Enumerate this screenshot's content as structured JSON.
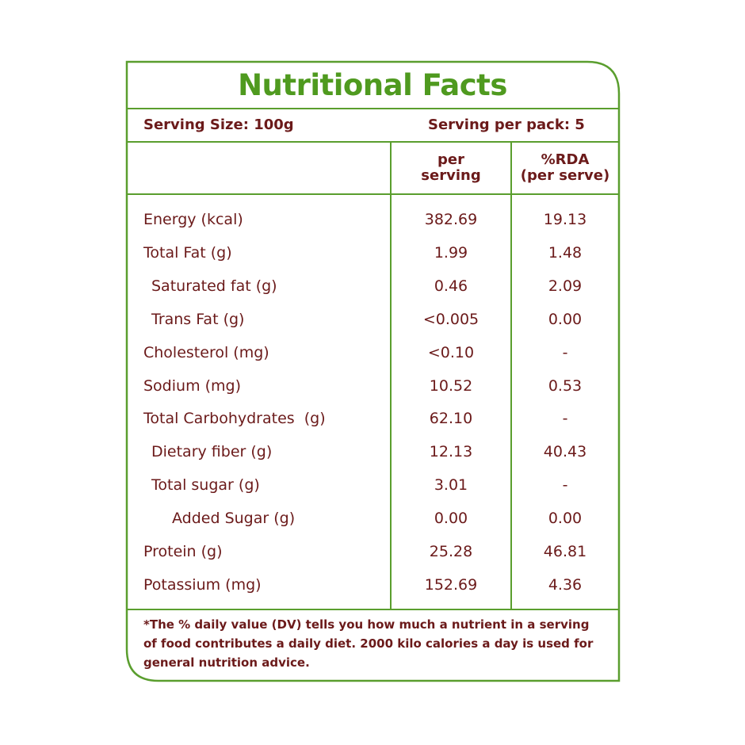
{
  "header": {
    "title": "Nutritional Facts",
    "serving_size": "Serving Size: 100g",
    "serving_per_pack": "Serving per pack: 5"
  },
  "table": {
    "columns": [
      [
        "per",
        "serving"
      ],
      [
        "%RDA",
        "(per serve)"
      ]
    ],
    "rows": [
      [
        "Energy (kcal)",
        "382.69",
        "19.13"
      ],
      [
        "Total Fat (g)",
        "1.99",
        "1.48"
      ],
      [
        "Saturated fat (g)",
        "0.46",
        "2.09"
      ],
      [
        "Trans Fat (g)",
        "<0.005",
        "0.00"
      ],
      [
        "Cholesterol (mg)",
        "<0.10",
        "-"
      ],
      [
        "Sodium (mg)",
        "10.52",
        "0.53"
      ],
      [
        "Total Carbohydrates  (g)",
        "62.10",
        "-"
      ],
      [
        "Dietary fiber (g)",
        "12.13",
        "40.43"
      ],
      [
        "Total sugar (g)",
        "3.01",
        "-"
      ],
      [
        "Added Sugar (g)",
        "0.00",
        "0.00"
      ],
      [
        "Protein (g)",
        "25.28",
        "46.81"
      ],
      [
        "Potassium (mg)",
        "152.69",
        "4.36"
      ]
    ]
  },
  "footnote": [
    "*The % daily value (DV) tells you how much a nutrient in a serving",
    "of food contributes a daily diet. 2000 kilo calories a day is used for",
    "general nutrition advice."
  ]
}
